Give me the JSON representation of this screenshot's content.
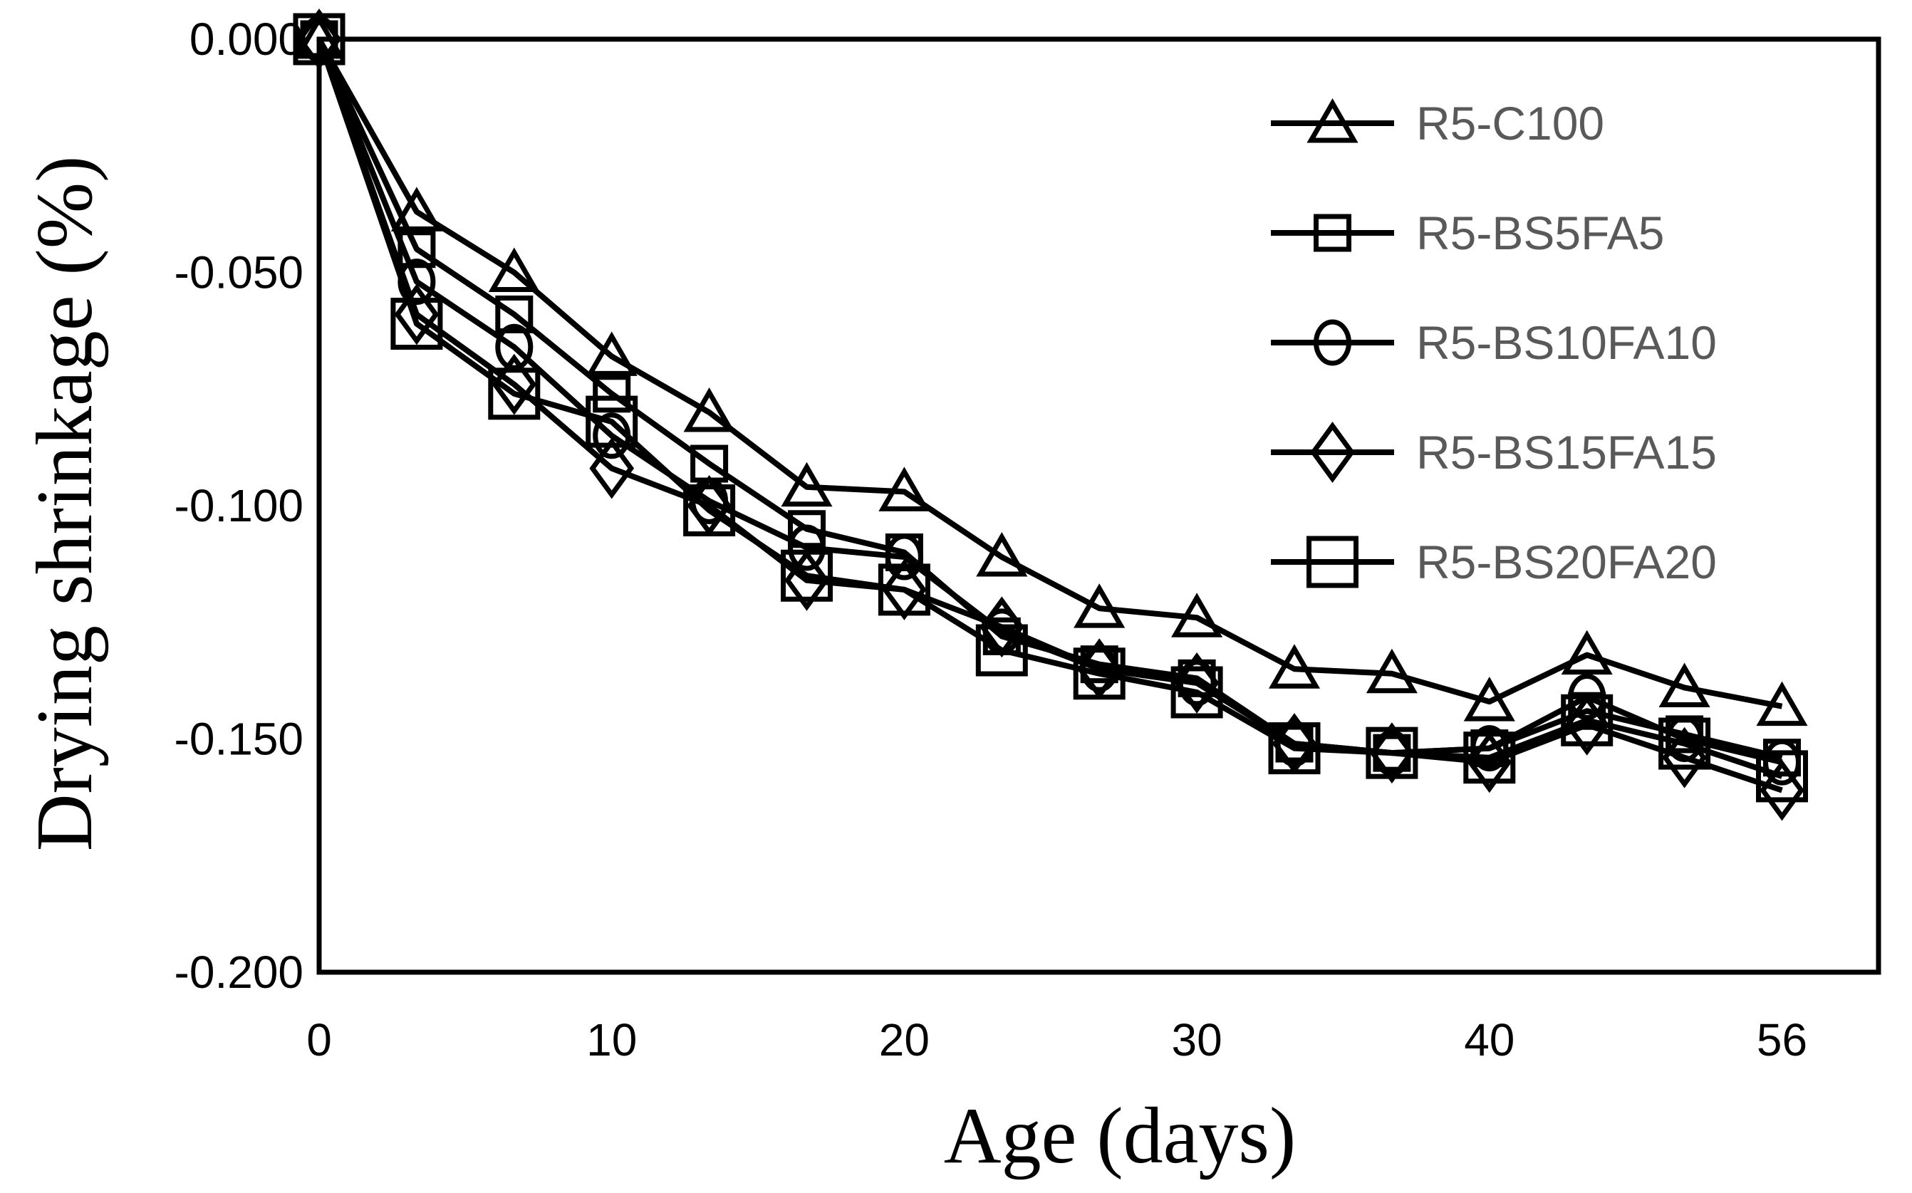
{
  "figure": {
    "background_color": "#ffffff",
    "line_color": "#000000",
    "legend_text_color": "#595959",
    "axis_text_color": "#000000"
  },
  "chart_data": {
    "type": "line",
    "title": "",
    "xlabel": "Age (days)",
    "ylabel": "Drying shrinkage (%)",
    "categories": [
      0,
      3,
      7,
      10,
      14,
      17,
      20,
      23,
      27,
      30,
      33,
      37,
      40,
      43,
      47,
      56
    ],
    "x_tick_labels": [
      "0",
      "10",
      "20",
      "30",
      "40",
      "56"
    ],
    "x_tick_indices": [
      0,
      3,
      6,
      9,
      12,
      15
    ],
    "y_tick_labels": [
      "0.000",
      "-0.050",
      "-0.100",
      "-0.150",
      "-0.200"
    ],
    "y_tick_values": [
      0.0,
      -0.05,
      -0.1,
      -0.15,
      -0.2
    ],
    "ylim": [
      -0.2,
      0.0
    ],
    "grid": false,
    "legend_position": "top-right-inside",
    "series": [
      {
        "name": "R5-C100",
        "marker": "triangle",
        "color": "#000000",
        "values": [
          0.0,
          -0.037,
          -0.05,
          -0.068,
          -0.08,
          -0.096,
          -0.097,
          -0.111,
          -0.122,
          -0.124,
          -0.135,
          -0.136,
          -0.142,
          -0.132,
          -0.139,
          -0.143
        ]
      },
      {
        "name": "R5-BS5FA5",
        "marker": "square-small",
        "color": "#000000",
        "values": [
          0.0,
          -0.045,
          -0.059,
          -0.076,
          -0.091,
          -0.105,
          -0.11,
          -0.128,
          -0.134,
          -0.137,
          -0.151,
          -0.153,
          -0.152,
          -0.144,
          -0.149,
          -0.154
        ]
      },
      {
        "name": "R5-BS10FA10",
        "marker": "circle",
        "color": "#000000",
        "values": [
          0.0,
          -0.052,
          -0.066,
          -0.085,
          -0.099,
          -0.109,
          -0.111,
          -0.127,
          -0.135,
          -0.138,
          -0.151,
          -0.153,
          -0.152,
          -0.141,
          -0.15,
          -0.155
        ]
      },
      {
        "name": "R5-BS15FA15",
        "marker": "diamond",
        "color": "#000000",
        "values": [
          0.0,
          -0.059,
          -0.074,
          -0.092,
          -0.1,
          -0.116,
          -0.118,
          -0.126,
          -0.135,
          -0.138,
          -0.151,
          -0.153,
          -0.155,
          -0.147,
          -0.154,
          -0.161
        ]
      },
      {
        "name": "R5-BS20FA20",
        "marker": "square-large",
        "color": "#000000",
        "values": [
          0.0,
          -0.061,
          -0.076,
          -0.082,
          -0.101,
          -0.115,
          -0.118,
          -0.131,
          -0.136,
          -0.14,
          -0.152,
          -0.153,
          -0.154,
          -0.146,
          -0.151,
          -0.158
        ]
      }
    ]
  }
}
